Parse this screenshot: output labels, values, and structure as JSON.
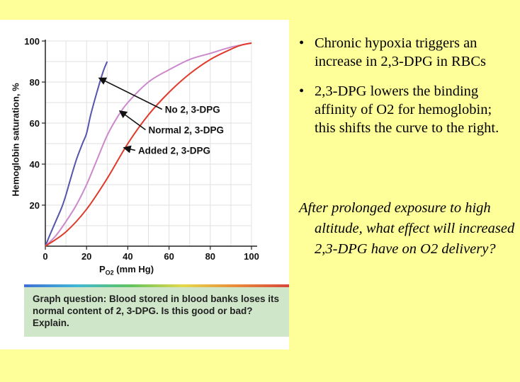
{
  "slide": {
    "bullets": [
      "Chronic hypoxia triggers an increase in 2,3-DPG in RBCs",
      "2,3-DPG lowers the binding affinity of O2 for hemoglobin; this shifts the curve to the right."
    ],
    "question": "After prolonged exposure to high altitude, what effect will increased 2,3-DPG have on O2 delivery?"
  },
  "figure": {
    "graph_question": "Graph question: Blood stored in blood banks loses its normal content of 2, 3-DPG. Is this good or bad? Explain."
  },
  "chart_data": {
    "type": "line",
    "title": "",
    "xlabel": "PO2 (mm Hg)",
    "ylabel": "Hemoglobin saturation, %",
    "xlim": [
      0,
      100
    ],
    "ylim": [
      0,
      100
    ],
    "xticks": [
      20,
      40,
      60,
      80,
      100
    ],
    "yticks": [
      20,
      40,
      60,
      80,
      100
    ],
    "grid": true,
    "series": [
      {
        "name": "No 2, 3-DPG",
        "color": "#5555aa",
        "x": [
          0,
          2,
          5,
          8,
          10,
          12,
          15,
          18,
          20,
          22,
          25,
          28,
          30
        ],
        "y": [
          0,
          5,
          12,
          19,
          25,
          32,
          42,
          50,
          55,
          64,
          75,
          85,
          90
        ]
      },
      {
        "name": "Normal 2, 3-DPG",
        "color": "#cc88cc",
        "x": [
          0,
          5,
          10,
          15,
          20,
          25,
          30,
          35,
          40,
          50,
          60,
          70,
          80,
          90,
          100
        ],
        "y": [
          0,
          5,
          12,
          20,
          30,
          42,
          54,
          63,
          70,
          80,
          86,
          91,
          94,
          97,
          99
        ]
      },
      {
        "name": "Added 2, 3-DPG",
        "color": "#e03a2a",
        "x": [
          0,
          10,
          20,
          30,
          40,
          50,
          60,
          70,
          80,
          90,
          95,
          100
        ],
        "y": [
          0,
          7,
          18,
          33,
          50,
          64,
          75,
          84,
          91,
          96,
          98,
          99
        ]
      }
    ],
    "annotations": [
      {
        "text": "No 2, 3-DPG",
        "points_to": "No 2, 3-DPG"
      },
      {
        "text": "Normal 2, 3-DPG",
        "points_to": "Normal 2, 3-DPG"
      },
      {
        "text": "Added 2, 3-DPG",
        "points_to": "Added 2, 3-DPG"
      }
    ]
  }
}
